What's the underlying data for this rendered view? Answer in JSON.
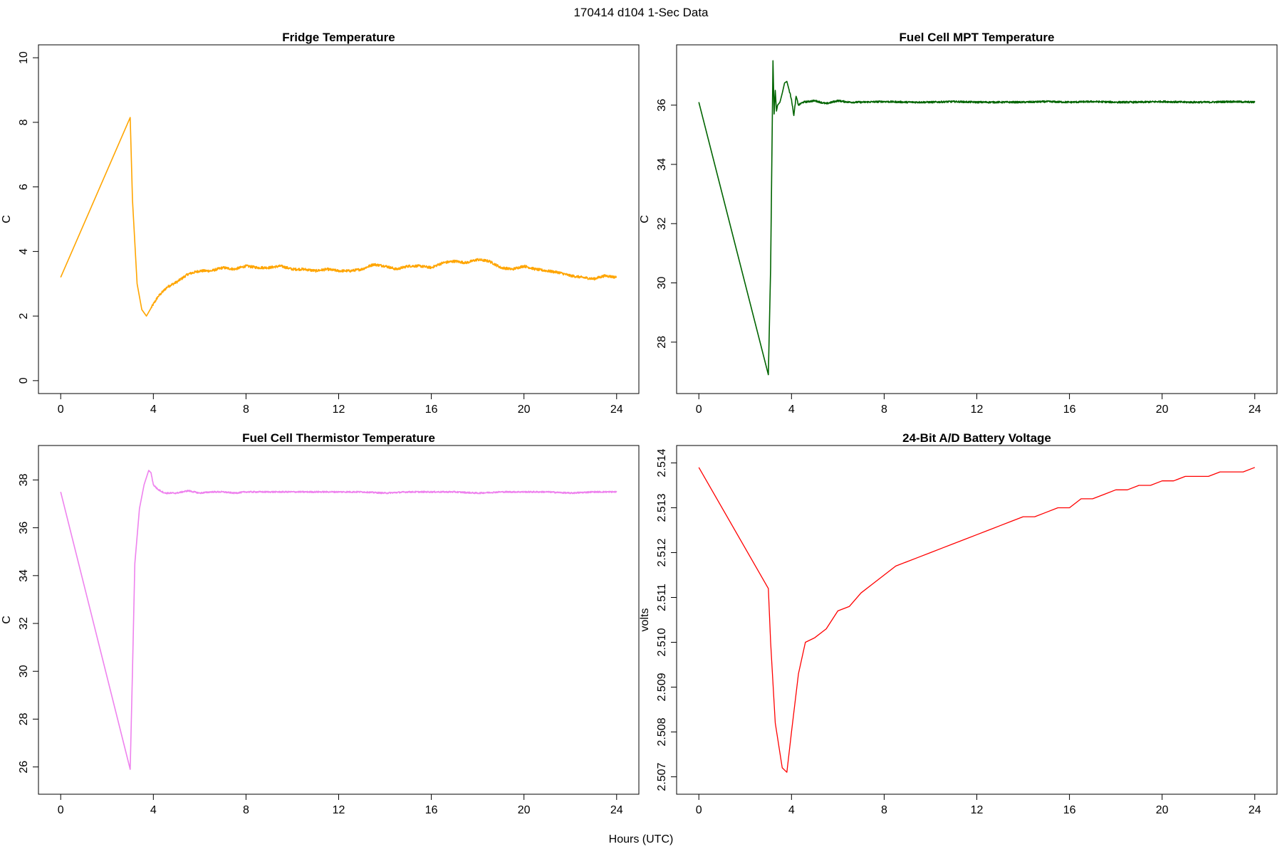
{
  "figure": {
    "suptitle": "170414   d104   1-Sec Data",
    "shared_xlabel": "Hours (UTC)"
  },
  "chart_data": [
    {
      "type": "line",
      "title": "Fridge Temperature",
      "xlabel": "",
      "ylabel": "C",
      "color": "#FFA500",
      "xlim": [
        0,
        24
      ],
      "ylim": [
        0,
        10
      ],
      "xticks": [
        0,
        4,
        8,
        12,
        16,
        20,
        24
      ],
      "yticks": [
        0,
        2,
        4,
        6,
        8,
        10
      ],
      "ytick_format": "int",
      "noise": 0.04,
      "x": [
        0,
        3.0,
        3.1,
        3.3,
        3.5,
        3.7,
        3.9,
        4.2,
        4.6,
        5.0,
        5.5,
        6.0,
        6.5,
        7.0,
        7.5,
        8.0,
        8.5,
        9.0,
        9.5,
        10.0,
        10.5,
        11.0,
        11.5,
        12.0,
        12.5,
        13.0,
        13.5,
        14.0,
        14.5,
        15.0,
        15.5,
        16.0,
        16.5,
        17.0,
        17.5,
        18.0,
        18.5,
        19.0,
        19.5,
        20.0,
        20.5,
        21.0,
        21.5,
        22.0,
        22.5,
        23.0,
        23.5,
        24.0
      ],
      "y": [
        3.2,
        8.15,
        5.6,
        3.0,
        2.2,
        2.0,
        2.25,
        2.6,
        2.9,
        3.05,
        3.3,
        3.4,
        3.4,
        3.5,
        3.45,
        3.55,
        3.5,
        3.5,
        3.55,
        3.45,
        3.45,
        3.4,
        3.45,
        3.4,
        3.4,
        3.45,
        3.6,
        3.55,
        3.45,
        3.55,
        3.55,
        3.5,
        3.65,
        3.7,
        3.65,
        3.75,
        3.7,
        3.5,
        3.45,
        3.55,
        3.45,
        3.4,
        3.35,
        3.25,
        3.2,
        3.15,
        3.25,
        3.2
      ]
    },
    {
      "type": "line",
      "title": "Fuel Cell MPT Temperature",
      "xlabel": "",
      "ylabel": "C",
      "color": "#006400",
      "xlim": [
        0,
        24
      ],
      "ylim": [
        26.7,
        37.6
      ],
      "xticks": [
        0,
        4,
        8,
        12,
        16,
        20,
        24
      ],
      "yticks": [
        28,
        30,
        32,
        34,
        36
      ],
      "ytick_format": "int",
      "noise": 0.03,
      "x": [
        0,
        3.0,
        3.1,
        3.2,
        3.25,
        3.3,
        3.35,
        3.4,
        3.5,
        3.6,
        3.7,
        3.8,
        3.9,
        4.0,
        4.1,
        4.2,
        4.3,
        4.5,
        5.0,
        5.5,
        6.0,
        6.5,
        7.0,
        8.0,
        9.0,
        10.0,
        11.0,
        12.0,
        13.0,
        14.0,
        15.0,
        16.0,
        17.0,
        18.0,
        19.0,
        20.0,
        21.0,
        22.0,
        23.0,
        24.0
      ],
      "y": [
        36.1,
        26.9,
        30.5,
        37.5,
        35.7,
        36.5,
        35.8,
        36.0,
        36.1,
        36.4,
        36.75,
        36.8,
        36.5,
        36.2,
        35.65,
        36.3,
        36.0,
        36.1,
        36.15,
        36.05,
        36.15,
        36.1,
        36.1,
        36.12,
        36.1,
        36.1,
        36.12,
        36.1,
        36.1,
        36.1,
        36.12,
        36.1,
        36.12,
        36.1,
        36.1,
        36.12,
        36.1,
        36.1,
        36.12,
        36.1
      ]
    },
    {
      "type": "line",
      "title": "Fuel Cell Thermistor Temperature",
      "xlabel": "",
      "ylabel": "C",
      "color": "#EE82EE",
      "xlim": [
        0,
        24
      ],
      "ylim": [
        25.4,
        38.9
      ],
      "xticks": [
        0,
        4,
        8,
        12,
        16,
        20,
        24
      ],
      "yticks": [
        26,
        28,
        30,
        32,
        34,
        36,
        38
      ],
      "ytick_format": "int",
      "noise": 0.03,
      "x": [
        0,
        3.0,
        3.1,
        3.2,
        3.4,
        3.6,
        3.8,
        3.9,
        4.0,
        4.2,
        4.5,
        5.0,
        5.5,
        6.0,
        6.5,
        7.0,
        7.5,
        8.0,
        9.0,
        10.0,
        11.0,
        12.0,
        13.0,
        14.0,
        15.0,
        16.0,
        17.0,
        18.0,
        19.0,
        20.0,
        21.0,
        22.0,
        23.0,
        24.0
      ],
      "y": [
        37.5,
        25.9,
        30.0,
        34.5,
        36.8,
        37.8,
        38.4,
        38.3,
        37.8,
        37.6,
        37.45,
        37.45,
        37.55,
        37.45,
        37.5,
        37.5,
        37.45,
        37.5,
        37.5,
        37.5,
        37.5,
        37.5,
        37.5,
        37.45,
        37.5,
        37.5,
        37.5,
        37.45,
        37.5,
        37.5,
        37.5,
        37.45,
        37.5,
        37.5
      ]
    },
    {
      "type": "line",
      "title": "24-Bit A/D Battery Voltage",
      "xlabel": "",
      "ylabel": "volts",
      "color": "#FF0000",
      "xlim": [
        0,
        24
      ],
      "ylim": [
        2.5069,
        2.5141
      ],
      "xticks": [
        0,
        4,
        8,
        12,
        16,
        20,
        24
      ],
      "yticks": [
        2.507,
        2.508,
        2.509,
        2.51,
        2.511,
        2.512,
        2.513,
        2.514
      ],
      "ytick_format": "3dp",
      "noise": 0,
      "x": [
        0,
        3.0,
        3.1,
        3.3,
        3.6,
        3.8,
        4.0,
        4.3,
        4.6,
        5.0,
        5.5,
        6.0,
        6.5,
        7.0,
        7.5,
        8.0,
        8.5,
        9.0,
        9.5,
        10.0,
        10.5,
        11.0,
        11.5,
        12.0,
        12.5,
        13.0,
        13.5,
        14.0,
        14.5,
        15.0,
        15.5,
        16.0,
        16.5,
        17.0,
        17.5,
        18.0,
        18.5,
        19.0,
        19.5,
        20.0,
        20.5,
        21.0,
        21.5,
        22.0,
        22.5,
        23.0,
        23.5,
        24.0
      ],
      "y": [
        2.5139,
        2.5112,
        2.51,
        2.5082,
        2.5072,
        2.5071,
        2.508,
        2.5093,
        2.51,
        2.5101,
        2.5103,
        2.5107,
        2.5108,
        2.5111,
        2.5113,
        2.5115,
        2.5117,
        2.5118,
        2.5119,
        2.512,
        2.5121,
        2.5122,
        2.5123,
        2.5124,
        2.5125,
        2.5126,
        2.5127,
        2.5128,
        2.5128,
        2.5129,
        2.513,
        2.513,
        2.5132,
        2.5132,
        2.5133,
        2.5134,
        2.5134,
        2.5135,
        2.5135,
        2.5136,
        2.5136,
        2.5137,
        2.5137,
        2.5137,
        2.5138,
        2.5138,
        2.5138,
        2.5139
      ]
    }
  ]
}
